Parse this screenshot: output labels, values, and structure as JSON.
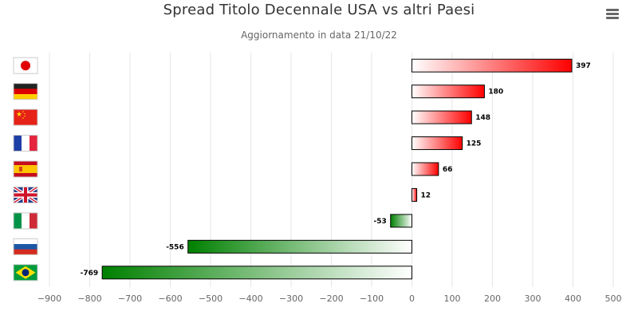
{
  "header": {
    "title": "Spread Titolo Decennale USA vs altri Paesi",
    "subtitle": "Aggiornamento in data 21/10/22"
  },
  "chart_data": {
    "type": "bar",
    "orientation": "horizontal",
    "categories": [
      "Japan",
      "Germany",
      "China",
      "France",
      "Spain",
      "United Kingdom",
      "Italy",
      "Russia",
      "Brazil"
    ],
    "category_display": "flag icons",
    "values": [
      397,
      180,
      148,
      125,
      66,
      12,
      -53,
      -556,
      -769
    ],
    "xlim": [
      -900,
      500
    ],
    "xticks": [
      -900,
      -800,
      -700,
      -600,
      -500,
      -400,
      -300,
      -200,
      -100,
      0,
      100,
      200,
      300,
      400,
      500
    ],
    "grid": "vertical",
    "legend": "none",
    "title": "Spread Titolo Decennale USA vs altri Paesi",
    "subtitle": "Aggiornamento in data 21/10/22",
    "xlabel": "",
    "ylabel": "",
    "colors": {
      "positive": "#ff0000",
      "negative": "#008000",
      "bar_border": "#000000",
      "grid": "#e6e6e6"
    }
  }
}
